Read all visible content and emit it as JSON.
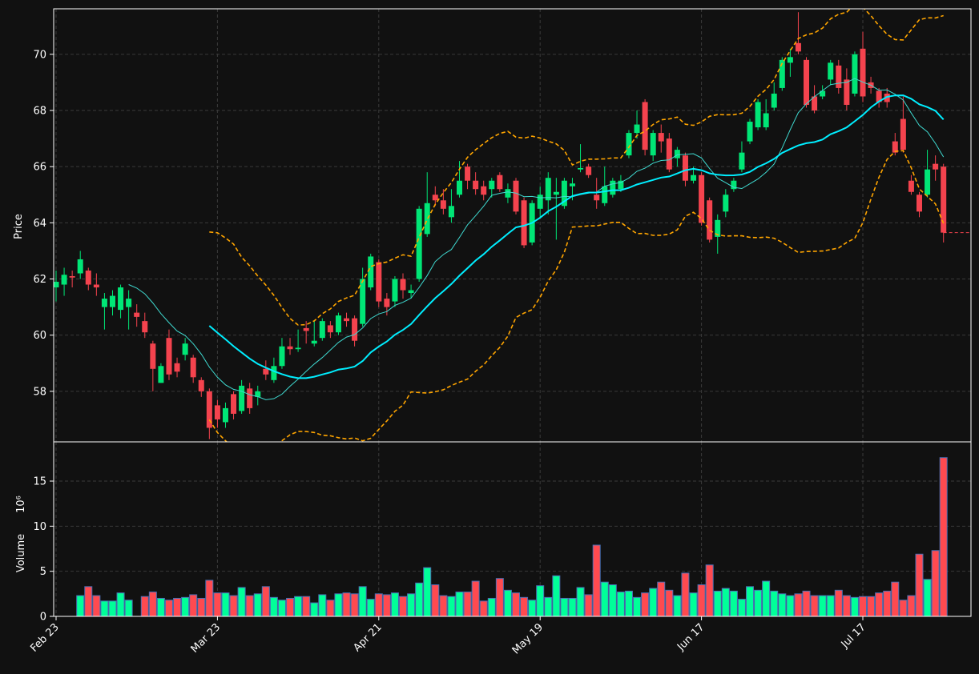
{
  "chart_data": [
    {
      "type": "candlestick",
      "ylabel": "Price",
      "categories": [
        "Feb 23",
        null,
        null,
        null,
        null,
        null,
        null,
        null,
        null,
        null,
        null,
        null,
        null,
        null,
        null,
        null,
        null,
        null,
        null,
        null,
        "Mar 23",
        null,
        null,
        null,
        null,
        null,
        null,
        null,
        null,
        null,
        null,
        null,
        null,
        null,
        null,
        null,
        null,
        null,
        null,
        null,
        "Apr 21",
        null,
        null,
        null,
        null,
        null,
        null,
        null,
        null,
        null,
        null,
        null,
        null,
        null,
        null,
        null,
        null,
        null,
        null,
        null,
        "May 19",
        null,
        null,
        null,
        null,
        null,
        null,
        null,
        null,
        null,
        null,
        null,
        null,
        null,
        null,
        null,
        null,
        null,
        null,
        null,
        "Jun 17",
        null,
        null,
        null,
        null,
        null,
        null,
        null,
        null,
        null,
        null,
        null,
        null,
        null,
        null,
        null,
        null,
        null,
        null,
        null,
        "Jul 17",
        null,
        null,
        null,
        null,
        null,
        null,
        null,
        null,
        null,
        null
      ],
      "open": [
        61.7,
        61.8,
        62.1,
        62.2,
        62.3,
        61.8,
        61.0,
        61.0,
        60.9,
        61.0,
        60.8,
        60.5,
        59.7,
        58.3,
        59.9,
        59.0,
        59.3,
        59.2,
        58.4,
        58.0,
        57.5,
        56.9,
        57.9,
        57.3,
        58.1,
        57.8,
        58.8,
        58.4,
        58.9,
        59.6,
        59.5,
        60.25,
        59.7,
        59.9,
        60.35,
        60.1,
        60.6,
        60.6,
        60.4,
        61.7,
        62.6,
        61.3,
        61.2,
        62.0,
        61.5,
        62.0,
        63.6,
        65.0,
        64.8,
        64.2,
        65.0,
        66.0,
        65.5,
        65.3,
        65.2,
        65.7,
        64.9,
        65.5,
        64.8,
        63.3,
        64.5,
        64.8,
        65.0,
        64.6,
        65.3,
        65.9,
        66.0,
        65.0,
        64.7,
        65.0,
        65.2,
        66.4,
        67.2,
        68.3,
        66.4,
        67.2,
        67.0,
        66.3,
        66.4,
        65.5,
        65.7,
        64.8,
        63.5,
        64.4,
        65.2,
        65.9,
        66.9,
        67.4,
        67.4,
        68.1,
        68.8,
        69.7,
        70.4,
        69.8,
        68.5,
        68.5,
        69.1,
        69.6,
        69.1,
        68.6,
        70.2,
        69.0,
        68.7,
        68.6,
        66.9,
        67.7,
        65.5,
        65.0,
        65.0,
        66.1,
        66.0
      ],
      "high": [
        62.3,
        62.4,
        62.3,
        63.0,
        62.4,
        62.2,
        61.5,
        61.6,
        61.8,
        61.6,
        61.1,
        60.8,
        59.8,
        59.0,
        60.2,
        59.2,
        59.9,
        59.3,
        58.5,
        58.1,
        57.7,
        57.6,
        58.0,
        58.4,
        58.3,
        58.2,
        59.1,
        59.2,
        59.9,
        59.9,
        60.2,
        60.5,
        60.5,
        60.6,
        60.5,
        60.8,
        60.8,
        60.7,
        62.4,
        62.9,
        62.7,
        61.5,
        62.1,
        62.2,
        61.8,
        64.6,
        65.8,
        65.3,
        65.2,
        65.2,
        66.2,
        66.1,
        65.8,
        65.5,
        65.6,
        65.8,
        65.4,
        65.6,
        64.9,
        64.8,
        65.3,
        65.8,
        65.6,
        65.6,
        65.6,
        66.8,
        66.1,
        65.6,
        66.0,
        65.6,
        65.7,
        67.3,
        68.0,
        68.4,
        67.3,
        67.5,
        67.2,
        66.7,
        66.5,
        66.0,
        65.8,
        64.9,
        64.3,
        65.2,
        65.6,
        66.9,
        67.7,
        68.4,
        68.4,
        69.0,
        69.9,
        70.2,
        71.5,
        69.9,
        68.9,
        68.9,
        69.8,
        69.8,
        69.5,
        70.1,
        70.8,
        69.2,
        68.8,
        68.8,
        67.2,
        68.5,
        65.7,
        65.1,
        66.6,
        66.4,
        66.1
      ],
      "low": [
        61.2,
        61.4,
        61.7,
        62.0,
        61.6,
        61.4,
        60.2,
        60.7,
        60.6,
        60.2,
        60.3,
        59.9,
        58.0,
        58.3,
        58.4,
        58.5,
        59.1,
        58.3,
        57.8,
        56.3,
        56.7,
        56.7,
        57.0,
        57.2,
        57.2,
        57.5,
        58.4,
        58.3,
        58.8,
        59.3,
        59.4,
        59.7,
        59.6,
        59.8,
        59.9,
        60.0,
        60.3,
        59.6,
        60.3,
        61.6,
        61.0,
        60.7,
        61.0,
        61.3,
        61.3,
        61.9,
        63.5,
        64.6,
        64.3,
        64.0,
        64.9,
        65.2,
        65.0,
        64.8,
        64.9,
        65.1,
        64.7,
        64.3,
        63.1,
        63.2,
        64.2,
        64.3,
        63.4,
        64.5,
        64.8,
        65.8,
        65.6,
        64.5,
        64.6,
        64.9,
        65.1,
        66.3,
        67.0,
        66.4,
        66.2,
        66.5,
        65.8,
        66.0,
        65.3,
        65.4,
        63.9,
        63.3,
        62.9,
        64.2,
        65.1,
        65.8,
        66.8,
        67.3,
        67.3,
        68.0,
        68.7,
        69.2,
        70.0,
        68.1,
        67.9,
        68.4,
        68.9,
        68.6,
        68.0,
        68.5,
        68.3,
        68.6,
        68.1,
        68.1,
        66.4,
        66.5,
        65.0,
        64.2,
        64.9,
        65.5,
        63.3
      ],
      "close": [
        61.9,
        62.15,
        62.05,
        62.7,
        61.8,
        61.7,
        61.3,
        61.4,
        61.7,
        61.3,
        60.65,
        60.1,
        58.8,
        58.9,
        58.6,
        58.7,
        59.7,
        58.5,
        58.0,
        56.7,
        57.0,
        57.4,
        57.2,
        58.2,
        57.4,
        58.0,
        58.6,
        58.9,
        59.6,
        59.5,
        59.55,
        60.15,
        59.8,
        60.5,
        60.1,
        60.7,
        60.5,
        59.8,
        62.0,
        62.8,
        61.2,
        61.0,
        62.0,
        61.6,
        61.6,
        64.5,
        64.7,
        64.8,
        64.5,
        64.6,
        65.5,
        65.5,
        65.2,
        65.0,
        65.5,
        65.2,
        65.2,
        64.4,
        63.2,
        64.7,
        65.0,
        65.6,
        65.1,
        65.5,
        65.4,
        65.95,
        65.7,
        64.8,
        65.3,
        65.5,
        65.5,
        67.2,
        67.5,
        66.6,
        67.2,
        66.9,
        65.9,
        66.6,
        65.5,
        65.7,
        64.0,
        63.4,
        64.1,
        65.0,
        65.5,
        66.5,
        67.6,
        68.3,
        67.9,
        68.6,
        69.8,
        69.9,
        70.1,
        68.2,
        68.0,
        68.7,
        69.7,
        68.8,
        68.2,
        70.0,
        68.5,
        68.8,
        68.3,
        68.3,
        66.5,
        66.6,
        65.1,
        64.4,
        65.9,
        65.9,
        63.65
      ],
      "up_color": "#00e676",
      "down_color": "#f4434e",
      "moving_averages": [
        {
          "window": 10,
          "color": "#3fd9d0",
          "width": 1
        },
        {
          "window": 20,
          "color": "#00eeff",
          "width": 2
        }
      ],
      "bollinger": {
        "window": 20,
        "k": 2,
        "color": "#ffa500"
      },
      "last_price_line": true,
      "ylim": [
        56.2,
        71.62
      ],
      "yticks": [
        58,
        60,
        62,
        64,
        66,
        68,
        70
      ],
      "grid": true
    },
    {
      "type": "bar",
      "ylabel": "Volume",
      "offset_text": "10⁶",
      "values": [
        0,
        0,
        0,
        2.3,
        3.3,
        2.3,
        1.7,
        1.7,
        2.6,
        1.8,
        0,
        2.2,
        2.7,
        2.0,
        1.8,
        2.0,
        2.1,
        2.4,
        2.0,
        4.0,
        2.6,
        2.6,
        2.3,
        3.2,
        2.3,
        2.5,
        3.3,
        2.1,
        1.8,
        2.0,
        2.2,
        2.2,
        1.5,
        2.4,
        1.8,
        2.5,
        2.6,
        2.5,
        3.3,
        1.9,
        2.5,
        2.4,
        2.6,
        2.2,
        2.5,
        3.7,
        5.4,
        3.5,
        2.3,
        2.2,
        2.7,
        2.7,
        3.9,
        1.7,
        2.0,
        4.2,
        2.9,
        2.6,
        2.1,
        1.8,
        3.4,
        2.1,
        4.5,
        2.0,
        2.0,
        3.2,
        2.4,
        7.9,
        3.8,
        3.5,
        2.7,
        2.8,
        2.1,
        2.6,
        3.1,
        3.8,
        2.9,
        2.3,
        4.8,
        2.6,
        3.5,
        5.7,
        2.8,
        3.1,
        2.8,
        1.9,
        3.3,
        2.9,
        3.9,
        2.8,
        2.5,
        2.3,
        2.5,
        2.8,
        2.3,
        2.3,
        2.3,
        2.9,
        2.3,
        2.1,
        2.2,
        2.2,
        2.6,
        2.8,
        3.8,
        1.8,
        2.3,
        6.9,
        4.1,
        7.3,
        17.6
      ],
      "up_color": "#00ff99",
      "down_color": "#ff4a50",
      "edge_color": "#4a6fb5",
      "ylim": [
        0,
        19.35
      ],
      "yticks": [
        0,
        5,
        10,
        15
      ],
      "grid": true
    }
  ]
}
